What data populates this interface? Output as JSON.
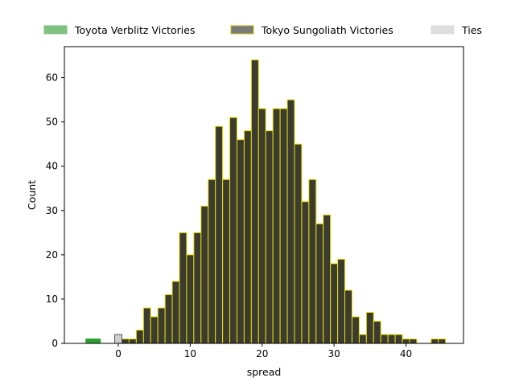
{
  "chart_data": {
    "type": "bar",
    "xlabel": "spread",
    "ylabel": "Count",
    "xlim": [
      -7.5,
      48
    ],
    "ylim": [
      0,
      67
    ],
    "x_ticks": [
      0,
      10,
      20,
      30,
      40
    ],
    "y_ticks": [
      0,
      10,
      20,
      30,
      40,
      50,
      60
    ],
    "grid": false,
    "legend_position": "top",
    "bin_width": 1,
    "series": [
      {
        "name": "Toyota Verblitz Victories",
        "fill": "#2ca02c",
        "edge": "#2ca02c",
        "bins": [
          {
            "x": -4,
            "count": 1
          },
          {
            "x": -3,
            "count": 1
          }
        ]
      },
      {
        "name": "Tokyo Sungoliath Victories",
        "fill": "#3b3b30",
        "edge": "#e8e000",
        "bins": [
          {
            "x": 1,
            "count": 1
          },
          {
            "x": 2,
            "count": 1
          },
          {
            "x": 3,
            "count": 3
          },
          {
            "x": 4,
            "count": 8
          },
          {
            "x": 5,
            "count": 6
          },
          {
            "x": 6,
            "count": 8
          },
          {
            "x": 7,
            "count": 11
          },
          {
            "x": 8,
            "count": 14
          },
          {
            "x": 9,
            "count": 25
          },
          {
            "x": 10,
            "count": 20
          },
          {
            "x": 11,
            "count": 25
          },
          {
            "x": 12,
            "count": 31
          },
          {
            "x": 13,
            "count": 37
          },
          {
            "x": 14,
            "count": 49
          },
          {
            "x": 15,
            "count": 37
          },
          {
            "x": 16,
            "count": 51
          },
          {
            "x": 17,
            "count": 46
          },
          {
            "x": 18,
            "count": 48
          },
          {
            "x": 19,
            "count": 64
          },
          {
            "x": 20,
            "count": 53
          },
          {
            "x": 21,
            "count": 48
          },
          {
            "x": 22,
            "count": 53
          },
          {
            "x": 23,
            "count": 53
          },
          {
            "x": 24,
            "count": 55
          },
          {
            "x": 25,
            "count": 45
          },
          {
            "x": 26,
            "count": 32
          },
          {
            "x": 27,
            "count": 37
          },
          {
            "x": 28,
            "count": 27
          },
          {
            "x": 29,
            "count": 29
          },
          {
            "x": 30,
            "count": 18
          },
          {
            "x": 31,
            "count": 19
          },
          {
            "x": 32,
            "count": 12
          },
          {
            "x": 33,
            "count": 6
          },
          {
            "x": 34,
            "count": 2
          },
          {
            "x": 35,
            "count": 7
          },
          {
            "x": 36,
            "count": 5
          },
          {
            "x": 37,
            "count": 2
          },
          {
            "x": 38,
            "count": 2
          },
          {
            "x": 39,
            "count": 2
          },
          {
            "x": 40,
            "count": 1
          },
          {
            "x": 41,
            "count": 1
          },
          {
            "x": 44,
            "count": 1
          },
          {
            "x": 45,
            "count": 1
          }
        ]
      },
      {
        "name": "Ties",
        "fill": "#cfcfcf",
        "edge": "#555555",
        "bins": [
          {
            "x": 0,
            "count": 2
          }
        ]
      }
    ],
    "legend_swatches": [
      {
        "fill": "#7fc27f",
        "edge": "#7fc27f"
      },
      {
        "fill": "#7a7a7a",
        "edge": "#c8c000"
      },
      {
        "fill": "#dedede",
        "edge": "#dedede"
      }
    ]
  }
}
